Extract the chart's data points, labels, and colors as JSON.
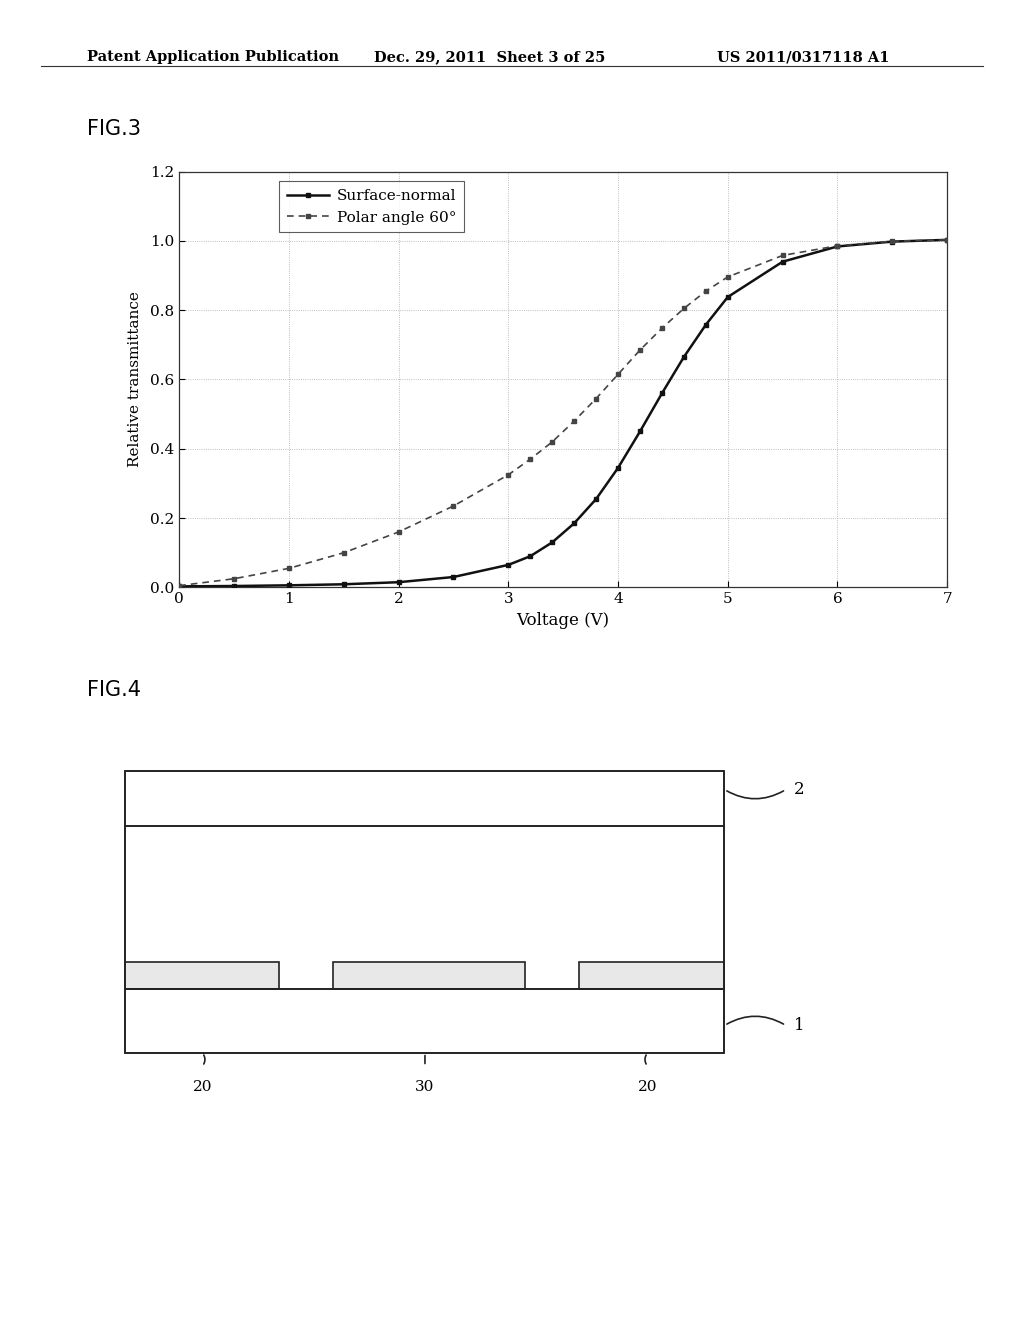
{
  "page_title_left": "Patent Application Publication",
  "page_title_mid": "Dec. 29, 2011  Sheet 3 of 25",
  "page_title_right": "US 2011/0317118 A1",
  "fig3_label": "FIG.3",
  "fig4_label": "FIG.4",
  "xlabel": "Voltage (V)",
  "ylabel": "Relative transmittance",
  "xlim": [
    0,
    7
  ],
  "ylim": [
    0,
    1.2
  ],
  "xticks": [
    0,
    1,
    2,
    3,
    4,
    5,
    6,
    7
  ],
  "yticks": [
    0,
    0.2,
    0.4,
    0.6,
    0.8,
    1.0,
    1.2
  ],
  "legend_surface": "Surface-normal",
  "legend_polar": "Polar angle 60°",
  "surface_normal_x": [
    0.0,
    0.5,
    1.0,
    1.5,
    2.0,
    2.5,
    3.0,
    3.2,
    3.4,
    3.6,
    3.8,
    4.0,
    4.2,
    4.4,
    4.6,
    4.8,
    5.0,
    5.5,
    6.0,
    6.5,
    7.0
  ],
  "surface_normal_y": [
    0.003,
    0.004,
    0.006,
    0.009,
    0.015,
    0.03,
    0.065,
    0.09,
    0.13,
    0.185,
    0.255,
    0.345,
    0.45,
    0.56,
    0.665,
    0.758,
    0.838,
    0.94,
    0.984,
    0.998,
    1.003
  ],
  "polar_60_x": [
    0.0,
    0.5,
    1.0,
    1.5,
    2.0,
    2.5,
    3.0,
    3.2,
    3.4,
    3.6,
    3.8,
    4.0,
    4.2,
    4.4,
    4.6,
    4.8,
    5.0,
    5.5,
    6.0,
    6.5,
    7.0
  ],
  "polar_60_y": [
    0.005,
    0.025,
    0.055,
    0.1,
    0.16,
    0.235,
    0.325,
    0.37,
    0.42,
    0.48,
    0.545,
    0.615,
    0.685,
    0.748,
    0.805,
    0.855,
    0.896,
    0.958,
    0.986,
    0.999,
    1.003
  ],
  "background_color": "#ffffff",
  "line_color": "#333333",
  "grid_color": "#aaaaaa"
}
